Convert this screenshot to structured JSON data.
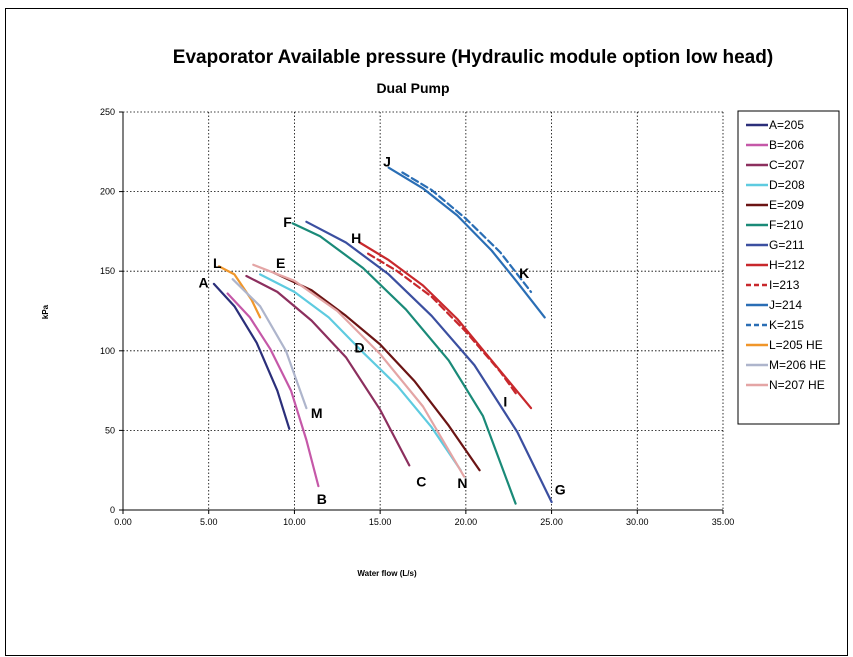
{
  "chart_data": {
    "type": "line",
    "title": "Evaporator Available pressure (Hydraulic module option low head)",
    "subtitle": "Dual Pump",
    "xlabel": "Water flow (L/s)",
    "ylabel": "kPa",
    "xlim": [
      0,
      35
    ],
    "ylim": [
      0,
      250
    ],
    "x_ticks": [
      "0.00",
      "5.00",
      "10.00",
      "15.00",
      "20.00",
      "25.00",
      "30.00",
      "35.00"
    ],
    "y_ticks": [
      "0",
      "50",
      "100",
      "150",
      "200",
      "250"
    ],
    "grid": true,
    "legend_position": "right",
    "series": [
      {
        "name": "A=205",
        "color": "#2b2f7a",
        "dash": false,
        "x": [
          5.3,
          6.5,
          7.8,
          9.0,
          9.7
        ],
        "y": [
          142,
          128,
          105,
          75,
          51
        ]
      },
      {
        "name": "B=206",
        "color": "#c558a8",
        "dash": false,
        "x": [
          6.1,
          7.4,
          8.6,
          9.8,
          10.7,
          11.4
        ],
        "y": [
          136,
          121,
          101,
          75,
          44,
          15
        ]
      },
      {
        "name": "C=207",
        "color": "#8c2f5e",
        "dash": false,
        "x": [
          7.2,
          9.0,
          11.0,
          13.0,
          15.0,
          16.7
        ],
        "y": [
          147,
          137,
          119,
          96,
          63,
          28
        ]
      },
      {
        "name": "D=208",
        "color": "#5ecbe0",
        "dash": false,
        "x": [
          8.0,
          10.0,
          12.0,
          14.0,
          16.0,
          18.0,
          19.7
        ],
        "y": [
          148,
          137,
          121,
          99,
          78,
          52,
          25
        ]
      },
      {
        "name": "E=209",
        "color": "#6b1414",
        "dash": false,
        "x": [
          8.8,
          11.0,
          13.0,
          15.0,
          17.0,
          19.0,
          20.8
        ],
        "y": [
          149,
          138,
          122,
          104,
          81,
          53,
          25
        ]
      },
      {
        "name": "F=210",
        "color": "#1a8a78",
        "dash": false,
        "x": [
          9.9,
          11.5,
          14.0,
          16.5,
          19.0,
          21.0,
          22.9
        ],
        "y": [
          180,
          172,
          152,
          126,
          94,
          59,
          4
        ]
      },
      {
        "name": "G=211",
        "color": "#3b4fa0",
        "dash": false,
        "x": [
          10.7,
          13.0,
          15.5,
          18.0,
          20.5,
          23.0,
          25.0
        ],
        "y": [
          181,
          168,
          148,
          122,
          91,
          49,
          5
        ]
      },
      {
        "name": "H=212",
        "color": "#c8282c",
        "dash": false,
        "x": [
          13.8,
          15.5,
          17.5,
          19.5,
          21.5,
          23.8
        ],
        "y": [
          168,
          157,
          141,
          120,
          94,
          64
        ]
      },
      {
        "name": "I=213",
        "color": "#c8282c",
        "dash": true,
        "x": [
          14.3,
          16.0,
          18.0,
          20.0,
          22.0,
          23.0
        ],
        "y": [
          161,
          150,
          134,
          112,
          87,
          72
        ]
      },
      {
        "name": "J=214",
        "color": "#2a6eb5",
        "dash": false,
        "x": [
          15.5,
          17.5,
          19.5,
          21.5,
          23.0,
          24.6
        ],
        "y": [
          215,
          202,
          185,
          163,
          143,
          121
        ]
      },
      {
        "name": "K=215",
        "color": "#2a6eb5",
        "dash": true,
        "x": [
          16.3,
          18.0,
          20.0,
          22.0,
          23.8
        ],
        "y": [
          212,
          201,
          183,
          162,
          137
        ]
      },
      {
        "name": "L=205 HE",
        "color": "#f0962a",
        "dash": false,
        "x": [
          5.6,
          6.5,
          7.5,
          8.0
        ],
        "y": [
          153,
          148,
          132,
          121
        ]
      },
      {
        "name": "M=206 HE",
        "color": "#aeb5cc",
        "dash": false,
        "x": [
          6.4,
          8.0,
          9.5,
          10.7
        ],
        "y": [
          145,
          128,
          100,
          64
        ]
      },
      {
        "name": "N=207 HE",
        "color": "#e4a5a5",
        "dash": false,
        "x": [
          7.6,
          10.0,
          12.5,
          15.0,
          17.5,
          19.9
        ],
        "y": [
          154,
          144,
          125,
          98,
          65,
          21
        ]
      }
    ],
    "annotations": [
      {
        "text": "A",
        "x": 4.7,
        "y": 143
      },
      {
        "text": "L",
        "x": 5.5,
        "y": 155
      },
      {
        "text": "E",
        "x": 9.2,
        "y": 155
      },
      {
        "text": "F",
        "x": 9.6,
        "y": 181
      },
      {
        "text": "H",
        "x": 13.6,
        "y": 171
      },
      {
        "text": "J",
        "x": 15.4,
        "y": 219
      },
      {
        "text": "K",
        "x": 23.4,
        "y": 149
      },
      {
        "text": "D",
        "x": 13.8,
        "y": 102
      },
      {
        "text": "M",
        "x": 11.3,
        "y": 61
      },
      {
        "text": "I",
        "x": 22.3,
        "y": 68
      },
      {
        "text": "C",
        "x": 17.4,
        "y": 18
      },
      {
        "text": "N",
        "x": 19.8,
        "y": 17
      },
      {
        "text": "B",
        "x": 11.6,
        "y": 7
      },
      {
        "text": "G",
        "x": 25.5,
        "y": 13
      }
    ]
  }
}
